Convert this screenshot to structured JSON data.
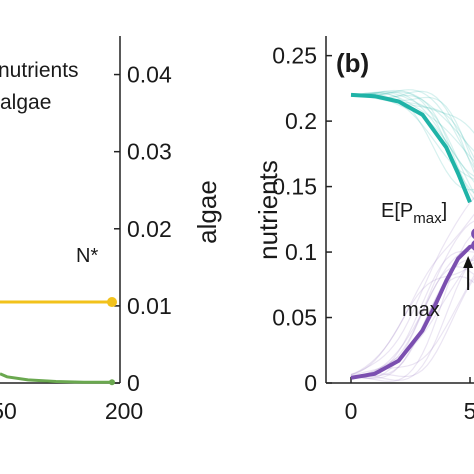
{
  "colors": {
    "nutrients": "#1fb3a7",
    "algae": "#7b4fb0",
    "n_star": "#f2c21b",
    "algae_left": "#6aa84f"
  },
  "chart_data": [
    {
      "type": "line",
      "panel": "a (partial)",
      "legend": [
        "nutrients",
        "algae"
      ],
      "ylabel": "algae",
      "y_ticks": [
        "0",
        "0.01",
        "0.02",
        "0.03",
        "0.04"
      ],
      "ylim": [
        0,
        0.045
      ],
      "x_ticks": [
        "50",
        "200"
      ],
      "xlim": [
        40,
        200
      ],
      "annotations": {
        "n_star": "N*"
      },
      "series": [
        {
          "name": "nutrients",
          "x": [
            40,
            200
          ],
          "values": [
            0.0105,
            0.0105
          ]
        },
        {
          "name": "algae",
          "x": [
            40,
            50,
            80,
            120,
            160,
            200
          ],
          "values": [
            0.0012,
            0.0008,
            0.0004,
            0.0002,
            0.0001,
            0.0001
          ]
        }
      ]
    },
    {
      "type": "line",
      "panel": "b",
      "panel_tag": "(b)",
      "ylabel": "nutrients",
      "y_ticks": [
        "0",
        "0.05",
        "0.1",
        "0.15",
        "0.2",
        "0.25"
      ],
      "ylim": [
        0,
        0.265
      ],
      "x_ticks": [
        "0",
        "5"
      ],
      "xlim": [
        0,
        6
      ],
      "annotations": {
        "e_pmax": "E[P",
        "e_pmax_sub": "max",
        "e_pmax_close": "]",
        "max_label": "max"
      },
      "markers": {
        "e_pmax": {
          "x": 5.3,
          "y": 0.114
        },
        "max": {
          "x": 5.3,
          "y": 0.105
        }
      },
      "series": [
        {
          "name": "nutrients",
          "x": [
            0,
            1,
            2,
            3,
            4,
            4.5,
            5
          ],
          "values": [
            0.22,
            0.219,
            0.215,
            0.205,
            0.18,
            0.16,
            0.138
          ]
        },
        {
          "name": "algae",
          "x": [
            0,
            1,
            2,
            3,
            3.5,
            4,
            4.5,
            5,
            5.3
          ],
          "values": [
            0.004,
            0.007,
            0.017,
            0.04,
            0.058,
            0.078,
            0.095,
            0.104,
            0.105
          ]
        }
      ]
    }
  ]
}
